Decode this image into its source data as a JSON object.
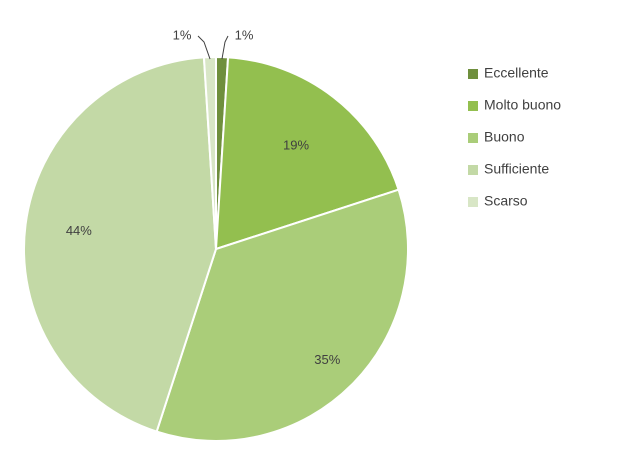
{
  "chart_data": {
    "type": "pie",
    "title": "",
    "categories": [
      "Eccellente",
      "Molto buono",
      "Buono",
      "Sufficiente",
      "Scarso"
    ],
    "values": [
      1,
      19,
      35,
      44,
      1
    ],
    "labels": [
      "1%",
      "19%",
      "35%",
      "44%",
      "1%"
    ],
    "colors": [
      "#6f8f3d",
      "#93bf4f",
      "#aacd79",
      "#c3d9a6",
      "#d8e6c6"
    ],
    "legend_position": "right",
    "start": "top",
    "direction": "clockwise"
  }
}
